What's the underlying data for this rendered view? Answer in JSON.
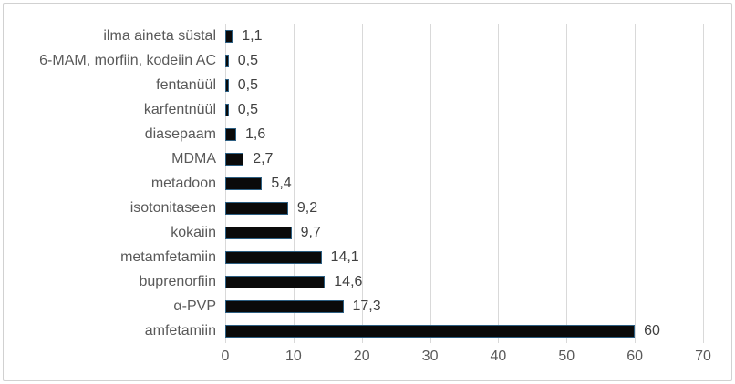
{
  "chart_data": {
    "type": "bar",
    "orientation": "horizontal",
    "title": "",
    "xlabel": "",
    "ylabel": "",
    "categories": [
      "ilma aineta süstal",
      "6-MAM, morfiin, kodeiin AC",
      "fentanüül",
      "karfentnüül",
      "diasepaam",
      "MDMA",
      "metadoon",
      "isotonitaseen",
      "kokaiin",
      "metamfetamiin",
      "buprenorfiin",
      "α-PVP",
      "amfetamiin"
    ],
    "values": [
      1.1,
      0.5,
      0.5,
      0.5,
      1.6,
      2.7,
      5.4,
      9.2,
      9.7,
      14.1,
      14.6,
      17.3,
      60
    ],
    "value_labels": [
      "1,1",
      "0,5",
      "0,5",
      "0,5",
      "1,6",
      "2,7",
      "5,4",
      "9,2",
      "9,7",
      "14,1",
      "14,6",
      "17,3",
      "60"
    ],
    "x_ticks": [
      "0",
      "10",
      "20",
      "30",
      "40",
      "50",
      "60",
      "70"
    ],
    "x_tick_values": [
      0,
      10,
      20,
      30,
      40,
      50,
      60,
      70
    ],
    "xlim": [
      0,
      70
    ],
    "grid": true,
    "legend": "none",
    "colors": {
      "bar_fill": "#0a0a0a",
      "bar_border": "#2d5f82",
      "gridline": "#d9d9d9",
      "category_label": "#595959",
      "value_label": "#404040",
      "tick_label": "#595959",
      "frame_border": "#d1d1d1",
      "background": "#ffffff"
    }
  }
}
